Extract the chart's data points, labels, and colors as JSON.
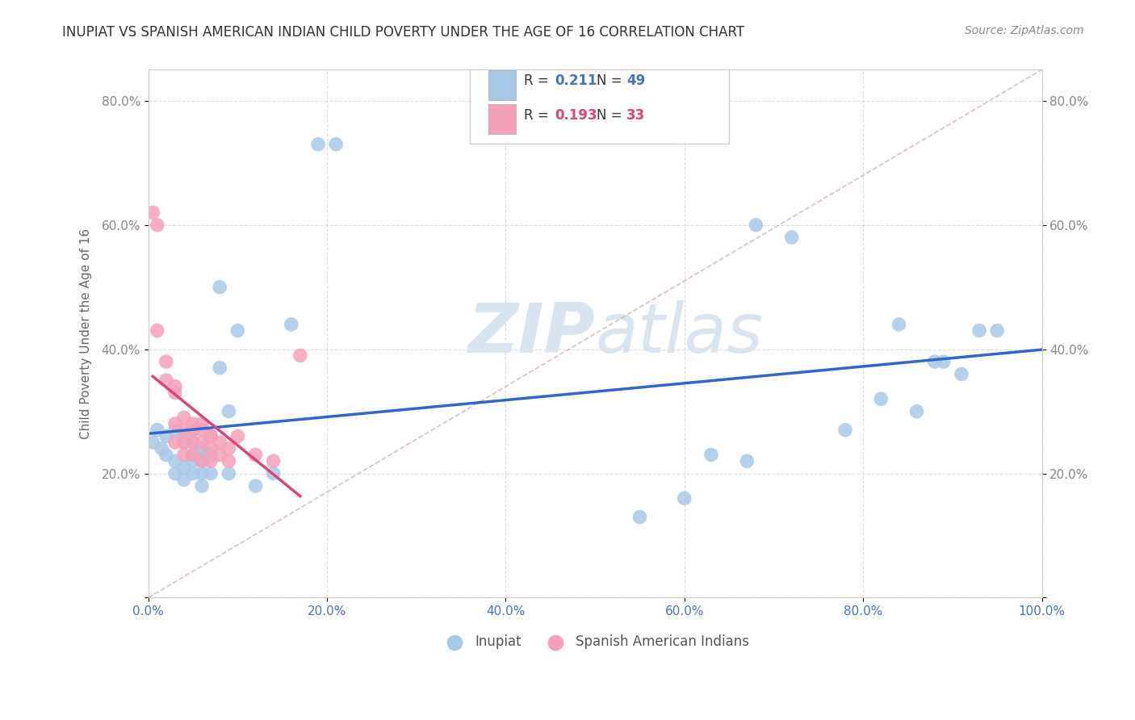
{
  "title": "INUPIAT VS SPANISH AMERICAN INDIAN CHILD POVERTY UNDER THE AGE OF 16 CORRELATION CHART",
  "source": "Source: ZipAtlas.com",
  "ylabel": "Child Poverty Under the Age of 16",
  "xlim": [
    0.0,
    1.0
  ],
  "ylim": [
    0.0,
    0.85
  ],
  "xticks": [
    0.0,
    0.2,
    0.4,
    0.6,
    0.8,
    1.0
  ],
  "yticks": [
    0.0,
    0.2,
    0.4,
    0.6,
    0.8
  ],
  "xticklabels": [
    "0.0%",
    "20.0%",
    "40.0%",
    "60.0%",
    "80.0%",
    "100.0%"
  ],
  "yticklabels": [
    "",
    "20.0%",
    "40.0%",
    "60.0%",
    "80.0%"
  ],
  "right_yticklabels": [
    "",
    "20.0%",
    "40.0%",
    "60.0%",
    "80.0%"
  ],
  "inupiat_R": "0.211",
  "inupiat_N": "49",
  "spanish_R": "0.193",
  "spanish_N": "33",
  "inupiat_color": "#a8c8e8",
  "spanish_color": "#f4a0b8",
  "inupiat_line_color": "#3366cc",
  "spanish_line_color": "#dd4477",
  "diag_line_color": "#ddaaaa",
  "watermark_color": "#d8e4f0",
  "inupiat_x": [
    0.005,
    0.01,
    0.015,
    0.02,
    0.02,
    0.03,
    0.03,
    0.03,
    0.04,
    0.04,
    0.04,
    0.04,
    0.05,
    0.05,
    0.05,
    0.05,
    0.05,
    0.06,
    0.06,
    0.06,
    0.06,
    0.06,
    0.07,
    0.07,
    0.08,
    0.08,
    0.09,
    0.09,
    0.1,
    0.12,
    0.14,
    0.16,
    0.19,
    0.21,
    0.55,
    0.6,
    0.63,
    0.67,
    0.68,
    0.72,
    0.78,
    0.82,
    0.84,
    0.86,
    0.88,
    0.89,
    0.91,
    0.93,
    0.95
  ],
  "inupiat_y": [
    0.25,
    0.27,
    0.24,
    0.23,
    0.26,
    0.22,
    0.2,
    0.27,
    0.21,
    0.19,
    0.26,
    0.25,
    0.23,
    0.25,
    0.27,
    0.22,
    0.2,
    0.24,
    0.23,
    0.22,
    0.2,
    0.18,
    0.23,
    0.2,
    0.5,
    0.37,
    0.3,
    0.2,
    0.43,
    0.18,
    0.2,
    0.44,
    0.73,
    0.73,
    0.13,
    0.16,
    0.23,
    0.22,
    0.6,
    0.58,
    0.27,
    0.32,
    0.44,
    0.3,
    0.38,
    0.38,
    0.36,
    0.43,
    0.43
  ],
  "spanish_x": [
    0.005,
    0.01,
    0.01,
    0.02,
    0.02,
    0.03,
    0.03,
    0.03,
    0.03,
    0.04,
    0.04,
    0.04,
    0.04,
    0.05,
    0.05,
    0.05,
    0.05,
    0.06,
    0.06,
    0.06,
    0.06,
    0.07,
    0.07,
    0.07,
    0.07,
    0.08,
    0.08,
    0.09,
    0.09,
    0.1,
    0.12,
    0.14,
    0.17
  ],
  "spanish_y": [
    0.62,
    0.6,
    0.43,
    0.38,
    0.35,
    0.34,
    0.33,
    0.28,
    0.25,
    0.29,
    0.27,
    0.25,
    0.23,
    0.28,
    0.27,
    0.25,
    0.23,
    0.28,
    0.27,
    0.25,
    0.22,
    0.26,
    0.26,
    0.24,
    0.22,
    0.25,
    0.23,
    0.24,
    0.22,
    0.26,
    0.23,
    0.22,
    0.39
  ],
  "background_color": "#ffffff",
  "grid_color": "#cccccc"
}
